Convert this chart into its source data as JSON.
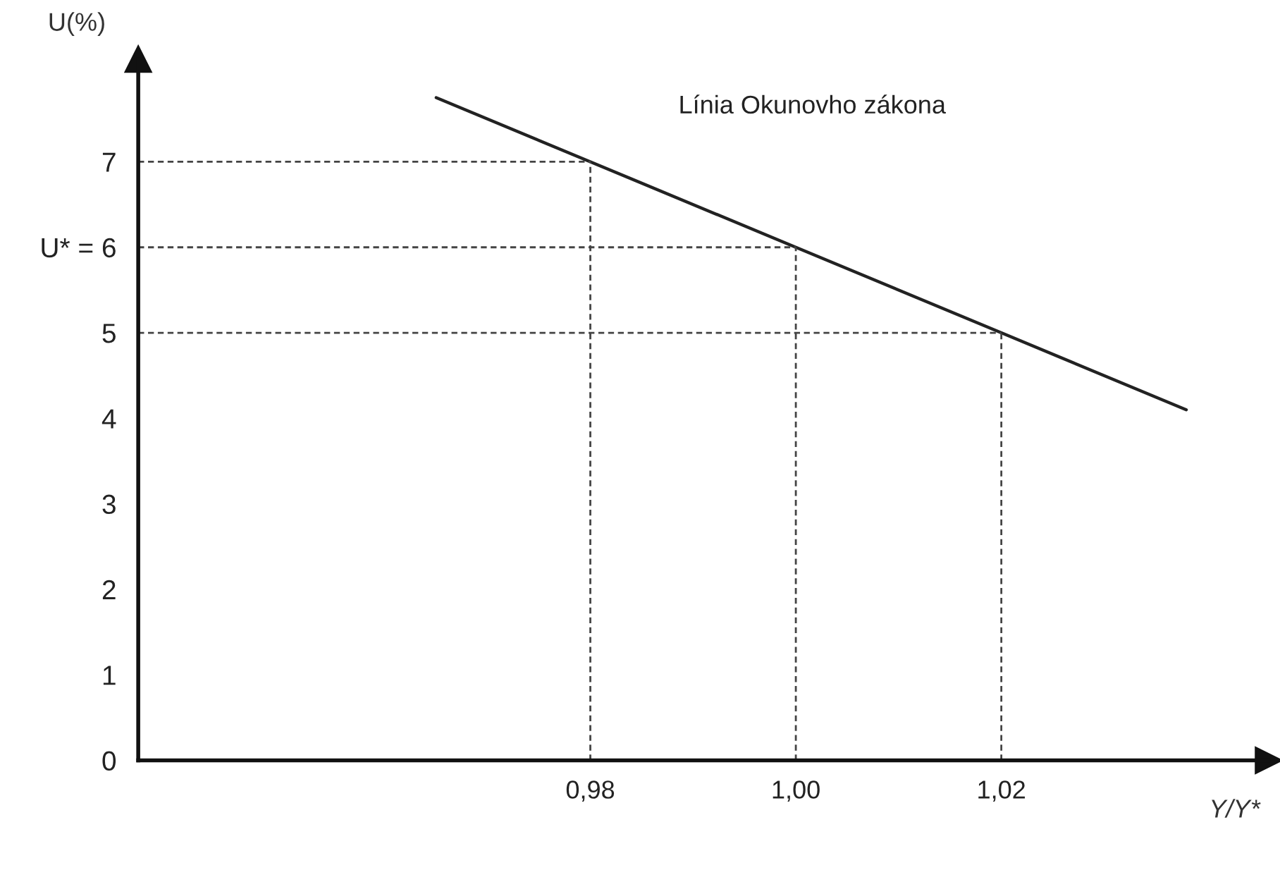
{
  "chart_data": {
    "type": "line",
    "ylabel": "U(%)",
    "xlabel": "Y/Y*",
    "x": [
      0.965,
      0.98,
      1.0,
      1.02,
      1.038
    ],
    "series": [
      {
        "name": "Línia Okunovho zákona",
        "color": "#222222",
        "values": [
          7.75,
          7,
          6,
          5,
          4.1
        ]
      }
    ],
    "xlim": [
      0.936,
      1.046
    ],
    "ylim": [
      0,
      8.2
    ],
    "xticks": [
      {
        "value": 0.98,
        "label": "0,98"
      },
      {
        "value": 1.0,
        "label": "1,00"
      },
      {
        "value": 1.02,
        "label": "1,02"
      }
    ],
    "yticks": [
      0,
      1,
      2,
      3,
      4,
      5,
      {
        "value": 6,
        "label": "U* = 6"
      },
      7
    ],
    "ref_lines": [
      {
        "axis": "y",
        "value": 7,
        "line_style": "dashed",
        "color": "#444444"
      },
      {
        "axis": "y",
        "value": 6,
        "line_style": "dashed",
        "color": "#444444"
      },
      {
        "axis": "y",
        "value": 5,
        "line_style": "dashed",
        "color": "#444444"
      },
      {
        "axis": "x",
        "value": 0.98,
        "line_style": "dashed",
        "color": "#444444"
      },
      {
        "axis": "x",
        "value": 1.0,
        "line_style": "dashed",
        "color": "#444444"
      },
      {
        "axis": "x",
        "value": 1.02,
        "line_style": "dashed",
        "color": "#444444"
      }
    ],
    "grid": false,
    "legend": false,
    "marker": "none",
    "line_style": "solid"
  }
}
